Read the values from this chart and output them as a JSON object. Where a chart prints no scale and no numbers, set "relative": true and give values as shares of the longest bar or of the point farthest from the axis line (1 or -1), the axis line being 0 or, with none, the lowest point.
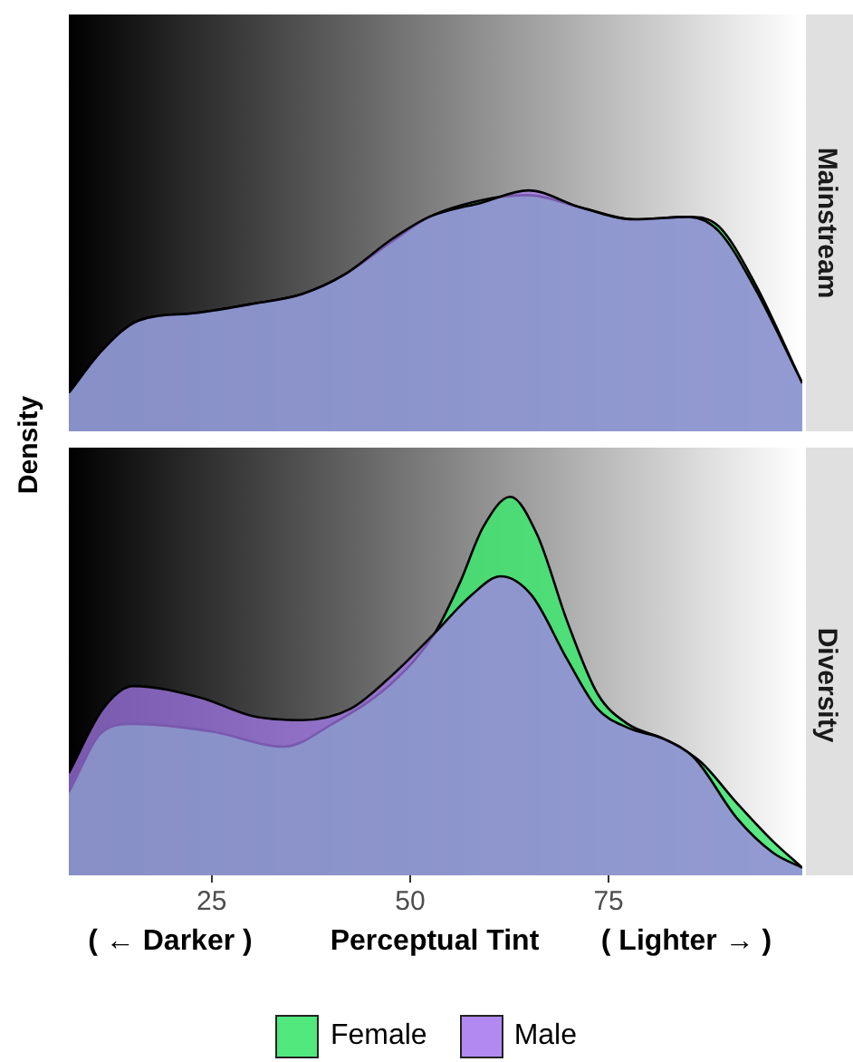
{
  "chart_data": [
    {
      "type": "area",
      "title": "Mainstream",
      "ylabel": "Density",
      "relative": true,
      "xlim": [
        7,
        99.4
      ],
      "xticks": [
        25,
        50,
        75
      ],
      "tick_labels": false,
      "grid": false,
      "legend": "bottom",
      "series": [
        {
          "name": "Female",
          "color": "#3ee66f",
          "x": [
            7,
            11.3,
            15.8,
            22.7,
            30.3,
            36.4,
            41.7,
            47.8,
            52.4,
            59.1,
            64.9,
            71.4,
            78.2,
            85.1,
            88.9,
            93.5,
            99.4
          ],
          "values": [
            0.16,
            0.34,
            0.46,
            0.49,
            0.53,
            0.57,
            0.65,
            0.79,
            0.89,
            0.96,
            0.98,
            0.93,
            0.88,
            0.89,
            0.85,
            0.61,
            0.2
          ]
        },
        {
          "name": "Male",
          "color": "#a87cf0",
          "x": [
            7,
            11.3,
            15.8,
            22.7,
            30.3,
            36.4,
            41.7,
            47.8,
            52.4,
            59.1,
            64.9,
            71.4,
            78.2,
            85.1,
            88.9,
            93.5,
            99.4
          ],
          "values": [
            0.16,
            0.34,
            0.46,
            0.49,
            0.53,
            0.57,
            0.65,
            0.8,
            0.89,
            0.95,
            1.0,
            0.93,
            0.88,
            0.89,
            0.83,
            0.59,
            0.2
          ]
        }
      ]
    },
    {
      "type": "area",
      "title": "Diversity",
      "xlabel": "Perceptual Tint",
      "annotations": [
        "( ← Darker )",
        "( Lighter → )"
      ],
      "relative": true,
      "xlim": [
        7,
        99.4
      ],
      "xticks": [
        25,
        50,
        75
      ],
      "tick_labels": "x",
      "grid": false,
      "series": [
        {
          "color": "#3ee66f",
          "x": [
            7,
            11.3,
            15.1,
            25.0,
            34.1,
            40.2,
            47.8,
            53.1,
            56.2,
            59.2,
            62.6,
            66.0,
            69.8,
            73.6,
            77.4,
            82.0,
            86.6,
            91.2,
            95.7,
            99.4
          ],
          "values": [
            0.22,
            0.38,
            0.4,
            0.38,
            0.34,
            0.4,
            0.51,
            0.64,
            0.77,
            0.92,
            1.0,
            0.9,
            0.67,
            0.48,
            0.4,
            0.36,
            0.3,
            0.19,
            0.09,
            0.02
          ]
        },
        {
          "color": "#a87cf0",
          "x": [
            7,
            11.3,
            15.1,
            23.5,
            30.3,
            36.4,
            42.5,
            47.8,
            53.1,
            57.7,
            61.4,
            65.3,
            69.8,
            73.6,
            77.4,
            82.0,
            85.8,
            91.2,
            95.7,
            99.4
          ],
          "values": [
            0.27,
            0.44,
            0.5,
            0.47,
            0.42,
            0.41,
            0.44,
            0.53,
            0.64,
            0.74,
            0.79,
            0.74,
            0.57,
            0.44,
            0.39,
            0.36,
            0.31,
            0.15,
            0.06,
            0.02
          ]
        }
      ]
    }
  ]
}
